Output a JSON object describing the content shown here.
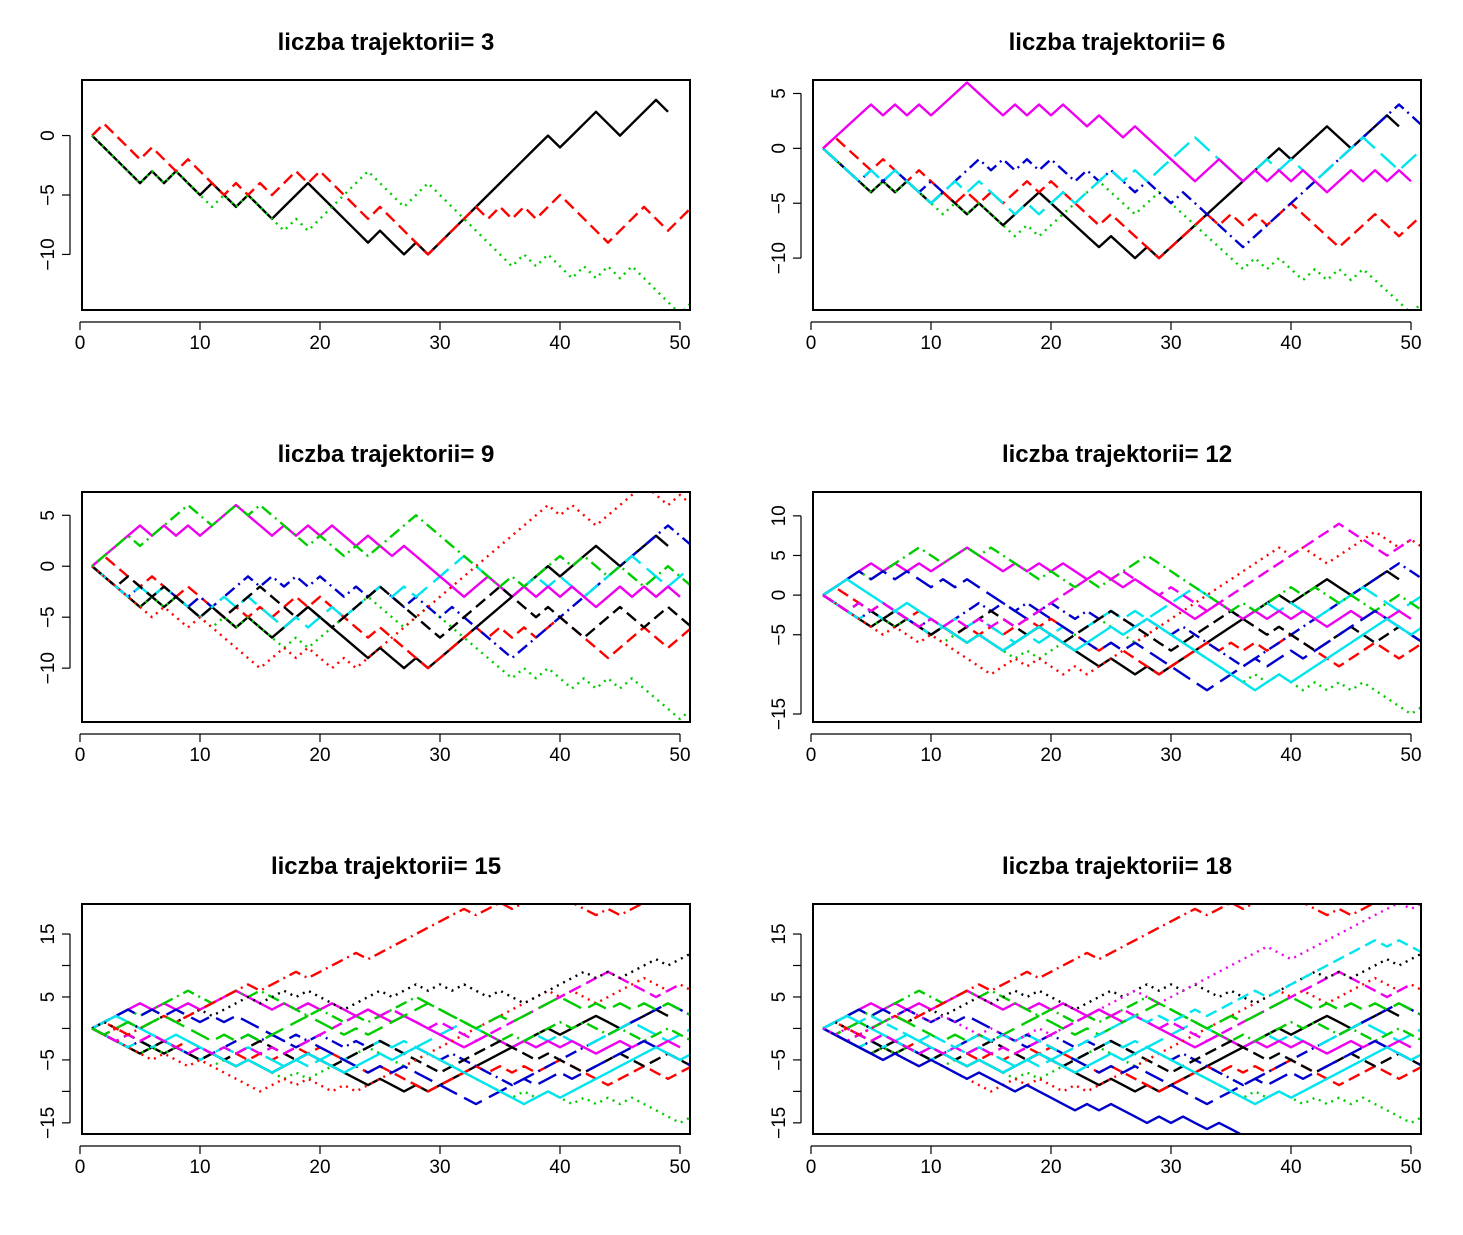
{
  "chart_data": [
    {
      "type": "line",
      "title": "liczba trajektorii= 3",
      "xlim": [
        1,
        50
      ],
      "ylim": [
        -14,
        4
      ],
      "x_ticks": [
        0,
        10,
        20,
        30,
        40,
        50
      ],
      "y_ticks": [
        0,
        -5,
        -10
      ],
      "y_tick_labels": [
        "0",
        "−5",
        "−10"
      ],
      "series": [
        {
          "color": "#000000",
          "dash": "solid",
          "steps": "DDDDUDUDDUDDUDDUUUDDDDDUDDUDUUUUUUUUUUDUUUDDUUUD"
        },
        {
          "color": "#ff0000",
          "dash": "dashed",
          "steps": "UDDDUDDUDDDUDUDUUDUDDDDUDDDDUUUUDUDUDUUDDDDUUUDDUU"
        },
        {
          "color": "#00cd00",
          "dash": "dotted",
          "steps": "DDDDUDUDDDUDUDDDUDUUUUUDDDUUDDDDDDDUDUDDUDUDUDDDDU"
        }
      ]
    },
    {
      "type": "line",
      "title": "liczba trajektorii= 6",
      "xlim": [
        1,
        50
      ],
      "ylim": [
        -14,
        5.5
      ],
      "x_ticks": [
        0,
        10,
        20,
        30,
        40,
        50
      ],
      "y_ticks": [
        5,
        0,
        -5,
        -10
      ],
      "y_tick_labels": [
        "5",
        "0",
        "−5",
        "−10"
      ],
      "series": [
        {
          "color": "#000000",
          "dash": "solid",
          "steps": "DDDDUDUDDUDDUDDUUUDDDDDUDDUDUUUUUUUUUUDUUUDDUUUD"
        },
        {
          "color": "#ff0000",
          "dash": "dashed",
          "steps": "UDDDUDDUDDDUDUDUUDUDDDDUDDDDUUUUDUDUDUUDDDDUUUDDUU"
        },
        {
          "color": "#00cd00",
          "dash": "dotted",
          "steps": "DDDDUDUDDDUDUDDDUDUUUUUDDDUUDDDDDDDUDUDDUDUDUDDDDU"
        },
        {
          "color": "#0000cd",
          "dash": "dotdash",
          "steps": "DDDUDUDDUDUUUDUDUDUDDUDUDDUDDUDDDDDUUUUUUUUUUUUUDD"
        },
        {
          "color": "#00e5ee",
          "dash": "longdash",
          "steps": "DDDUDUDDDUUDUDDDUDUUDUUUDUDUUUUDDDDUUDUDDUUUUDDDUU"
        },
        {
          "color": "#ee00ee",
          "dash": "solid",
          "steps": "UUUUDUDUDUUUDDDUDUDUDDUDDUDDDDDUUDDUDUDUDDUUDUDUD"
        }
      ]
    },
    {
      "type": "line",
      "title": "liczba trajektorii= 9",
      "xlim": [
        1,
        50
      ],
      "ylim": [
        -14.5,
        6.5
      ],
      "x_ticks": [
        0,
        10,
        20,
        30,
        40,
        50
      ],
      "y_ticks": [
        5,
        0,
        -5,
        -10
      ],
      "y_tick_labels": [
        "5",
        "0",
        "−5",
        "−10"
      ],
      "series": [
        {
          "color": "#000000",
          "dash": "solid",
          "steps": "DDDDUDUDDUDDUDDUUUDDDDDUDDUDUUUUUUUUUUDUUUDDUUUD"
        },
        {
          "color": "#ff0000",
          "dash": "dashed",
          "steps": "UDDDUDDUDDDUDUDUUDUDDDDUDDDDUUUUDUDUDUUDDDDUUUDDUU"
        },
        {
          "color": "#00cd00",
          "dash": "dotted",
          "steps": "DDDDUDUDDDUDUDDDUDUUUUUDDDUUDDDDDDDUDUDDUDUDUDDDDU"
        },
        {
          "color": "#0000cd",
          "dash": "dotdash",
          "steps": "DDDUDUDDUDUUUDUDUDUDDUDUDDUDDUDDDDDUUUUUUUUUUUUUDD"
        },
        {
          "color": "#00e5ee",
          "dash": "longdash",
          "steps": "DDDUDUDDDUUDUDDDUDUUDUUUDUDUUUUDDDDUUDUDDUUUUDDDUU"
        },
        {
          "color": "#ee00ee",
          "dash": "solid",
          "steps": "UUUUDUDUDUUUDDDUDUDUDDUDDUDDDDDUUDDUDUDUDDUUDUDUD"
        },
        {
          "color": "#000000",
          "dash": "dashed",
          "steps": "DDUDDUDDDUDUUUDDDUDDUUUUDDDDDUUUUUDDDUDDDUUUDDUUDD"
        },
        {
          "color": "#ff0000",
          "dash": "dotted",
          "steps": "DDDDDUDDUDDDDDUUDUDDUDUUUUUUUUUUUUUUUUDUDDUUUUDDUD"
        },
        {
          "color": "#00cd00",
          "dash": "dotdash",
          "steps": "UUUDUUUUDDUUDUDDDDUDDUDUUUUDDDDDDDUDUUUDUDDUDDUUDD"
        }
      ]
    },
    {
      "type": "line",
      "title": "liczba trajektorii= 12",
      "xlim": [
        1,
        50
      ],
      "ylim": [
        -15,
        12
      ],
      "x_ticks": [
        0,
        10,
        20,
        30,
        40,
        50
      ],
      "y_ticks": [
        10,
        5,
        0,
        -5,
        -15
      ],
      "y_tick_labels": [
        "10",
        "5",
        "0",
        "−5",
        "−15"
      ],
      "series": [
        {
          "color": "#000000",
          "dash": "solid",
          "steps": "DDDDUDUDDUDDUDDUUUDDDDDUDDUDUUUUUUUUUUDUUUDDUUUD"
        },
        {
          "color": "#ff0000",
          "dash": "dashed",
          "steps": "UDDDUDDUDDDUDUDUUDUDDDDUDDDDUUUUDUDUDUUDDDDUUUDDUU"
        },
        {
          "color": "#00cd00",
          "dash": "dotted",
          "steps": "DDDDUDUDDDUDUDDDUDUUUUUDDDUUDDDDDDDUDUDDUDUDUDDDDU"
        },
        {
          "color": "#0000cd",
          "dash": "dotdash",
          "steps": "DDDUDUDDUDUUUDUDUDUDDUDUDDUDDUDDDDDUUUUUUUUUUUUUDD"
        },
        {
          "color": "#00e5ee",
          "dash": "longdash",
          "steps": "DDDUDUDDDUUDUDDDUDUUDUUUDUDUUUUDDDDUUDUDDUUUUDDDUU"
        },
        {
          "color": "#ee00ee",
          "dash": "solid",
          "steps": "UUUUDUDUDUUUDDDUDUDUDDUDDUDDDDDUUDDUDUDUDDUUDUDUD"
        },
        {
          "color": "#000000",
          "dash": "dashed",
          "steps": "DDUDDUDDDUDUUUDDDUDDUUUUDDDDDUUUUUDDDUDDDUUUDDUUDD"
        },
        {
          "color": "#ff0000",
          "dash": "dotted",
          "steps": "DDDDDUDDUDDDDDUUDUDDUDUUUUUUUUUUUUUUUUDUDDUUUUDDUD"
        },
        {
          "color": "#00cd00",
          "dash": "dotdash",
          "steps": "UUUDUUUUDDUUDUDDDDUDDUDUUUUDDDDDDDUDUUUDUDDUDDUUDD"
        },
        {
          "color": "#0000cd",
          "dash": "longdash",
          "steps": "UUUDUDUDDUDUDDDDDUDDDDDUDUDDDDDDUUUUDUUDUUUUUUDDDD"
        },
        {
          "color": "#00e5ee",
          "dash": "solid",
          "steps": "UUDDDDUDDDDDUDDUUUDDDUUUDUUDDDDDDDDDUUDUUUUUUUUDDU"
        },
        {
          "color": "#ee00ee",
          "dash": "dashed",
          "steps": "DDUDUDDDUDUDUDUDUUUUUUUDUDDDUDDDUUUUUUUUUUUDDDDUU"
        }
      ]
    },
    {
      "type": "line",
      "title": "liczba trajektorii= 15",
      "xlim": [
        1,
        50
      ],
      "ylim": [
        -15.5,
        18.5
      ],
      "x_ticks": [
        0,
        10,
        20,
        30,
        40,
        50
      ],
      "y_ticks": [
        15,
        10,
        5,
        0,
        -5,
        -10,
        -15
      ],
      "y_tick_labels": [
        "15",
        "",
        "5",
        "",
        "−5",
        "",
        "−15"
      ],
      "series": [
        {
          "color": "#000000",
          "dash": "solid",
          "steps": "DDDDUDUDDUDDUDDUUUDDDDDUDDUDUUUUUUUUUUDUUUDDUUUD"
        },
        {
          "color": "#ff0000",
          "dash": "dashed",
          "steps": "UDDDUDDUDDDUDUDUUDUDDDDUDDDDUUUUDUDUDUUDDDDUUUDDUU"
        },
        {
          "color": "#00cd00",
          "dash": "dotted",
          "steps": "DDDDUDUDDDUDUDDDUDUUUUUDDDUUDDDDDDDUDUDDUDUDUDDDDU"
        },
        {
          "color": "#0000cd",
          "dash": "dotdash",
          "steps": "DDDUDUDDUDUUUDUDUDUDDUDUDDUDDUDDDDDUUUUUUUUUUUUUDD"
        },
        {
          "color": "#00e5ee",
          "dash": "longdash",
          "steps": "DDDUDUDDDUUDUDDDUDUUDUUUDUDUUUUDDDDUUDUDDUUUUDDDUU"
        },
        {
          "color": "#ee00ee",
          "dash": "solid",
          "steps": "UUUUDUDUDUUUDDDUDUDUDDUDDUDDDDDUUDDUDUDUDDUUDUDUD"
        },
        {
          "color": "#000000",
          "dash": "dashed",
          "steps": "DDUDDUDDDUDUUUDDDUDDUUUUDDDDDUUUUUDDDUDDDUUUDDUUDD"
        },
        {
          "color": "#ff0000",
          "dash": "dotted",
          "steps": "DDDDDUDDUDDDDDUUDUDDUDUUUUUUUUUUUUUUUUDUDDUUUUDDUD"
        },
        {
          "color": "#00cd00",
          "dash": "dotdash",
          "steps": "UUUDUUUUDDUUDUDDDDUDDUDUUUUDDDDDDDUDUUUDUDDUDDUUDD"
        },
        {
          "color": "#0000cd",
          "dash": "longdash",
          "steps": "UUUDUDUDDUDUDDDDDUDDDDDUDUDDDDDDUUUUDUUDUUUUUUDDDD"
        },
        {
          "color": "#00e5ee",
          "dash": "solid",
          "steps": "UUDDDDUDDDDDUDDUUUDDDUUUDUUDDDDDDDDDUUDUUUUUUUUDDU"
        },
        {
          "color": "#ee00ee",
          "dash": "dashed",
          "steps": "DDUDUDDDUDUDUDUDUUUUUUUDUDDDUDDDUUUUUUUUUUUDDDDUU"
        },
        {
          "color": "#000000",
          "dash": "dotted",
          "steps": "UDUDUUDUUDUUUDUUDUDDDUUUDUUDUDUDDUDDUUUUUDUDUUUDUU"
        },
        {
          "color": "#ff0000",
          "dash": "dotdash",
          "steps": "DUDUUUDUUUUUUDUUUDUUUUDUUUUUUUUDUUDUUUDDDDUDUUUUUU"
        },
        {
          "color": "#00cd00",
          "dash": "longdash",
          "steps": "DUUDUUDDDDUDUDUUUUDDDUDUUUUUDDDDUUDUUUUDDUDUDUDUDD"
        }
      ]
    },
    {
      "type": "line",
      "title": "liczba trajektorii= 18",
      "xlim": [
        1,
        50
      ],
      "ylim": [
        -15.5,
        18.5
      ],
      "x_ticks": [
        0,
        10,
        20,
        30,
        40,
        50
      ],
      "y_ticks": [
        15,
        10,
        5,
        0,
        -5,
        -10,
        -15
      ],
      "y_tick_labels": [
        "15",
        "",
        "5",
        "",
        "−5",
        "",
        "−15"
      ],
      "series": [
        {
          "color": "#000000",
          "dash": "solid",
          "steps": "DDDDUDUDDUDDUDDUUUDDDDDUDDUDUUUUUUUUUUDUUUDDUUUD"
        },
        {
          "color": "#ff0000",
          "dash": "dashed",
          "steps": "UDDDUDDUDDDUDUDUUDUDDDDUDDDDUUUUDUDUDUUDDDDUUUDDUU"
        },
        {
          "color": "#00cd00",
          "dash": "dotted",
          "steps": "DDDDUDUDDDUDUDDDUDUUUUUDDDUUDDDDDDDUDUDDUDUDUDDDDU"
        },
        {
          "color": "#0000cd",
          "dash": "dotdash",
          "steps": "DDDUDUDDUDUUUDUDUDUDDUDUDDUDDUDDDDDUUUUUUUUUUUUUDD"
        },
        {
          "color": "#00e5ee",
          "dash": "longdash",
          "steps": "DDDUDUDDDUUDUDDDUDUUDUUUDUDUUUUDDDDUUDUDDUUUUDDDUU"
        },
        {
          "color": "#ee00ee",
          "dash": "solid",
          "steps": "UUUUDUDUDUUUDDDUDUDUDDUDDUDDDDDUUDDUDUDUDDUUDUDUD"
        },
        {
          "color": "#000000",
          "dash": "dashed",
          "steps": "DDUDDUDDDUDUUUDDDUDDUUUUDDDDDUUUUUDDDUDDDUUUDDUUDD"
        },
        {
          "color": "#ff0000",
          "dash": "dotted",
          "steps": "DDDDDUDDUDDDDDUUDUDDUDUUUUUUUUUUUUUUUUDUDDUUUUDDUD"
        },
        {
          "color": "#00cd00",
          "dash": "dotdash",
          "steps": "UUUDUUUUDDUUDUDDDDUDDUDUUUUDDDDDDDUDUUUDUDDUDDUUDD"
        },
        {
          "color": "#0000cd",
          "dash": "longdash",
          "steps": "UUUDUDUDDUDUDDDDDUDDDDDUDUDDDDDDUUUUDUUDUUUUUUDDDD"
        },
        {
          "color": "#00e5ee",
          "dash": "solid",
          "steps": "UUDDDDUDDDDDUDDUUUDDDUUUDUUDDDDDDDDDUUDUUUUUUUUDDU"
        },
        {
          "color": "#ee00ee",
          "dash": "dashed",
          "steps": "DDUDUDDDUDUDUDUDUUUUUUUDUDDDUDDDUUUUUUUUUUUDDDDUU"
        },
        {
          "color": "#000000",
          "dash": "dotted",
          "steps": "UDUDUUDUUDUUUDUUDUDDDUUUDUUDUDUDDUDDUUUUUDUDUUUDUU"
        },
        {
          "color": "#ff0000",
          "dash": "dotdash",
          "steps": "DUDUUUDUUUUUUDUUUDUUUUDUUUUUUUUDUUDUUUDDDDUDUUUUUU"
        },
        {
          "color": "#00cd00",
          "dash": "longdash",
          "steps": "DUUDUUDDDDUDUDUUUUDDDUDUUUUUDDDDUUDUUUUDDUDUDUDUDD"
        },
        {
          "color": "#0000cd",
          "dash": "solid",
          "steps": "DDDDDUDDUDDDUDDDUDDDDUDUDDDUDUDDUDDDUDDDUDDUDUDDUD"
        },
        {
          "color": "#00e5ee",
          "dash": "dashed",
          "steps": "UUDUDDDDUDDUUDUDUDDDUUUUUUDUDUUDUUUUDUUUUUUUUUDUDD"
        },
        {
          "color": "#ee00ee",
          "dash": "dotted",
          "steps": "DUDUUUUDDUDDDUDDUUDUUUUUUUDDUUUUUUUUUDDUUUUUUUUUDU"
        }
      ]
    }
  ]
}
